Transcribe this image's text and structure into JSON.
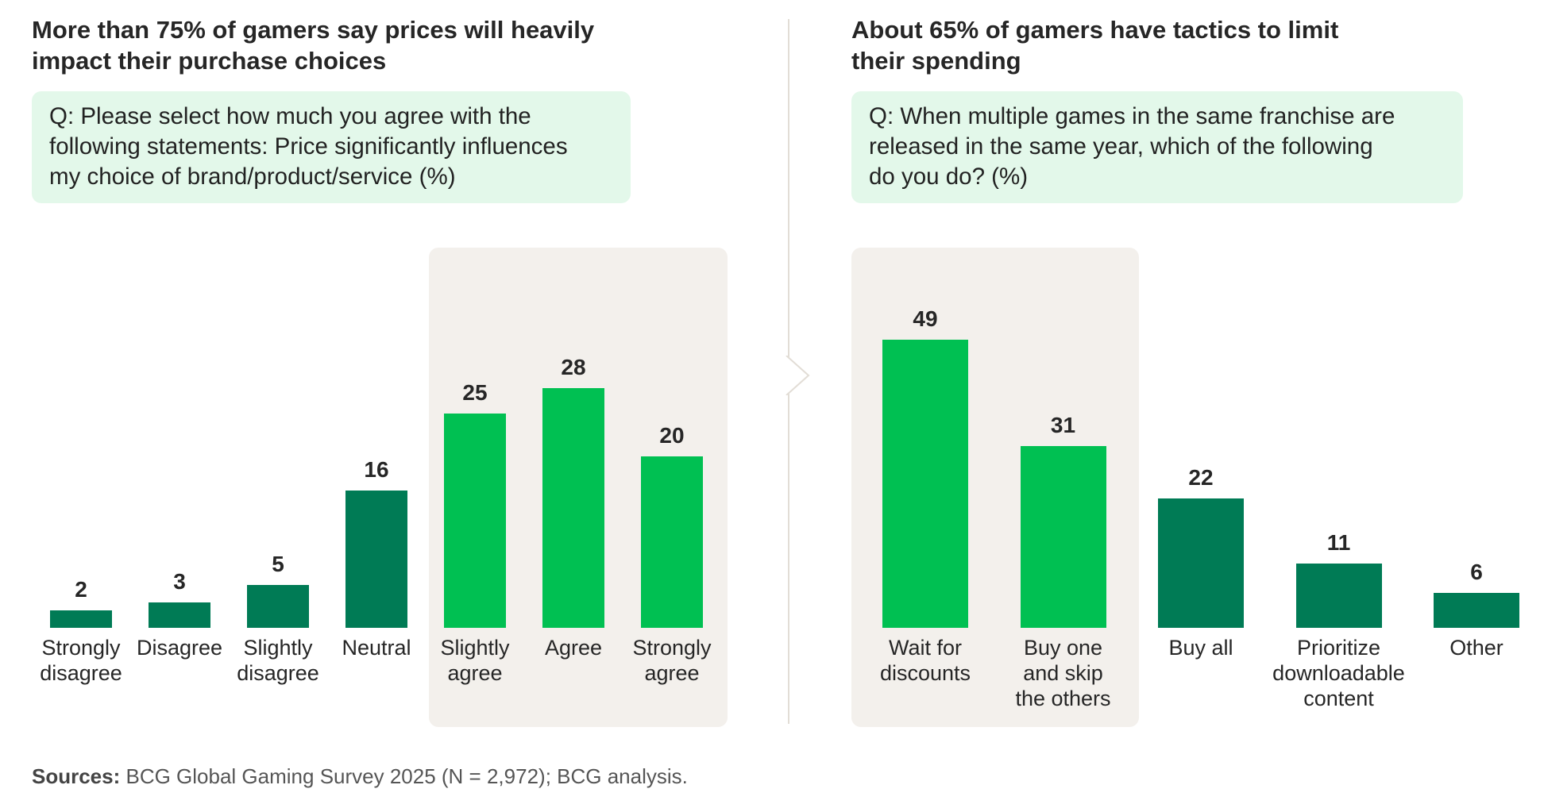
{
  "colors": {
    "dark_green": "#007b55",
    "bright_green": "#00c052",
    "highlight_bg": "#f3f0ec",
    "question_bg": "#e3f8ea"
  },
  "left": {
    "title_line1": "More than 75% of gamers say prices will heavily",
    "title_line2": "impact their purchase choices",
    "question_line1": "Q: Please select how much you agree with the",
    "question_line2": "following statements: Price significantly influences",
    "question_line3": "my choice of brand/product/service (%)"
  },
  "right": {
    "title_line1": "About 65% of gamers have tactics to limit",
    "title_line2": "their spending",
    "question_line1": "Q: When multiple games in the same franchise are",
    "question_line2": "released in the same year, which of the following",
    "question_line3": "do you do? (%)"
  },
  "source": {
    "label": "Sources:",
    "text": " BCG Global Gaming Survey 2025 (N = 2,972); BCG analysis."
  },
  "chart_data": [
    {
      "type": "bar",
      "title": "More than 75% of gamers say prices will heavily impact their purchase choices",
      "ylabel": "%",
      "categories": [
        [
          "Strongly",
          "disagree"
        ],
        [
          "Disagree"
        ],
        [
          "Slightly",
          "disagree"
        ],
        [
          "Neutral"
        ],
        [
          "Slightly",
          "agree"
        ],
        [
          "Agree"
        ],
        [
          "Strongly",
          "agree"
        ]
      ],
      "values": [
        2,
        3,
        5,
        16,
        25,
        28,
        20
      ],
      "highlighted": [
        false,
        false,
        false,
        false,
        true,
        true,
        true
      ],
      "ylim": [
        0,
        30
      ]
    },
    {
      "type": "bar",
      "title": "About 65% of gamers have tactics to limit their spending",
      "ylabel": "%",
      "categories": [
        [
          "Wait for",
          "discounts"
        ],
        [
          "Buy one",
          "and skip",
          "the others"
        ],
        [
          "Buy all"
        ],
        [
          "Prioritize",
          "downloadable",
          "content"
        ],
        [
          "Other"
        ]
      ],
      "values": [
        49,
        31,
        22,
        11,
        6
      ],
      "highlighted": [
        true,
        true,
        false,
        false,
        false
      ],
      "ylim": [
        0,
        55
      ]
    }
  ]
}
